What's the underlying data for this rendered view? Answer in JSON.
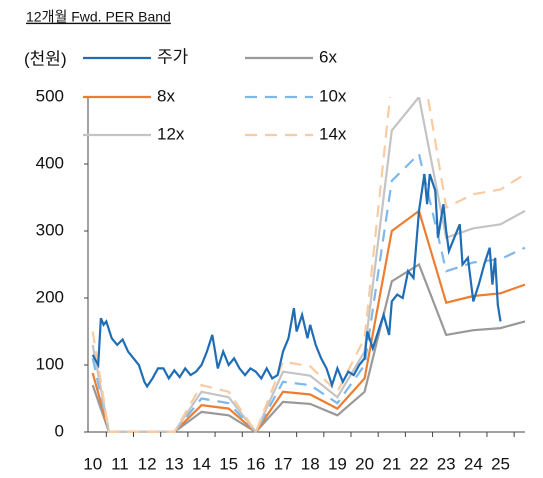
{
  "chart_data": {
    "type": "line",
    "title": "12개월 Fwd. PER Band",
    "y_label": "(천원)",
    "xlim": [
      9.9,
      25.9
    ],
    "xticks": [
      10,
      11,
      12,
      13,
      14,
      15,
      16,
      17,
      18,
      19,
      20,
      21,
      22,
      23,
      24,
      25
    ],
    "ylim": [
      0,
      500
    ],
    "yticks": [
      0,
      100,
      200,
      300,
      400,
      500
    ],
    "series": [
      {
        "name": "주가",
        "color": "#1f6db5",
        "dashed": false,
        "x": [
          10.0,
          10.2,
          10.3,
          10.4,
          10.5,
          10.7,
          10.9,
          11.1,
          11.3,
          11.5,
          11.7,
          11.9,
          12.0,
          12.2,
          12.4,
          12.6,
          12.8,
          13.0,
          13.2,
          13.4,
          13.6,
          13.8,
          14.0,
          14.2,
          14.4,
          14.5,
          14.6,
          14.8,
          15.0,
          15.2,
          15.4,
          15.6,
          15.8,
          16.0,
          16.2,
          16.4,
          16.6,
          16.8,
          17.0,
          17.2,
          17.4,
          17.5,
          17.7,
          17.9,
          18.0,
          18.2,
          18.4,
          18.6,
          18.8,
          19.0,
          19.2,
          19.4,
          19.6,
          19.8,
          20.0,
          20.1,
          20.3,
          20.5,
          20.7,
          20.9,
          21.0,
          21.2,
          21.4,
          21.6,
          21.8,
          22.0,
          22.2,
          22.3,
          22.4,
          22.6,
          22.7,
          22.9,
          23.0,
          23.1,
          23.3,
          23.5,
          23.6,
          23.8,
          24.0,
          24.2,
          24.4,
          24.6,
          24.7,
          24.8,
          24.9,
          25.0
        ],
        "values": [
          115,
          100,
          170,
          160,
          165,
          140,
          130,
          138,
          120,
          110,
          100,
          75,
          68,
          80,
          95,
          95,
          80,
          92,
          82,
          95,
          85,
          90,
          100,
          120,
          145,
          120,
          95,
          120,
          100,
          110,
          95,
          85,
          95,
          90,
          80,
          95,
          80,
          85,
          120,
          140,
          185,
          150,
          175,
          140,
          160,
          130,
          110,
          95,
          70,
          95,
          75,
          90,
          85,
          100,
          110,
          150,
          125,
          150,
          175,
          145,
          195,
          205,
          200,
          240,
          230,
          330,
          385,
          340,
          385,
          360,
          290,
          340,
          300,
          270,
          290,
          310,
          250,
          260,
          195,
          220,
          250,
          275,
          220,
          260,
          190,
          165
        ]
      },
      {
        "name": "6x",
        "color": "#999999",
        "dashed": false,
        "x": [
          10.0,
          10.6,
          12.6,
          13.0,
          14.0,
          15.0,
          16.0,
          17.0,
          18.0,
          19.0,
          20.0,
          21.0,
          22.0,
          23.0,
          24.0,
          25.0,
          25.9
        ],
        "values": [
          70,
          0,
          0,
          0,
          30,
          25,
          0,
          45,
          42,
          25,
          60,
          225,
          250,
          145,
          152,
          155,
          165
        ]
      },
      {
        "name": "8x",
        "color": "#ed7d31",
        "dashed": false,
        "x": [
          10.0,
          10.6,
          12.6,
          13.0,
          14.0,
          15.0,
          16.0,
          17.0,
          18.0,
          19.0,
          20.0,
          21.0,
          22.0,
          23.0,
          24.0,
          25.0,
          25.9
        ],
        "values": [
          88,
          0,
          0,
          0,
          40,
          35,
          0,
          60,
          56,
          35,
          80,
          300,
          330,
          193,
          203,
          207,
          220
        ]
      },
      {
        "name": "10x",
        "color": "#7fb8e8",
        "dashed": true,
        "x": [
          10.0,
          10.6,
          12.6,
          13.0,
          14.0,
          15.0,
          16.0,
          17.0,
          18.0,
          19.0,
          20.0,
          21.0,
          22.0,
          23.0,
          24.0,
          25.0,
          25.9
        ],
        "values": [
          110,
          0,
          0,
          0,
          50,
          43,
          0,
          75,
          70,
          43,
          100,
          375,
          415,
          240,
          253,
          258,
          275
        ]
      },
      {
        "name": "12x",
        "color": "#c4c4c4",
        "dashed": false,
        "x": [
          10.0,
          10.6,
          12.6,
          13.0,
          14.0,
          15.0,
          16.0,
          17.0,
          18.0,
          19.0,
          20.0,
          21.0,
          22.0,
          23.0,
          24.0,
          25.0,
          25.9
        ],
        "values": [
          130,
          0,
          0,
          0,
          60,
          52,
          0,
          90,
          84,
          52,
          120,
          450,
          500,
          290,
          304,
          310,
          330
        ]
      },
      {
        "name": "14x",
        "color": "#f8cba3",
        "dashed": true,
        "x": [
          10.0,
          10.6,
          12.6,
          13.0,
          14.0,
          15.0,
          16.0,
          17.0,
          18.0,
          19.0,
          20.0,
          21.0,
          22.0,
          23.0,
          24.0,
          25.0,
          25.9
        ],
        "values": [
          150,
          0,
          0,
          0,
          70,
          60,
          0,
          105,
          98,
          60,
          140,
          525,
          580,
          335,
          355,
          362,
          385
        ]
      }
    ]
  }
}
